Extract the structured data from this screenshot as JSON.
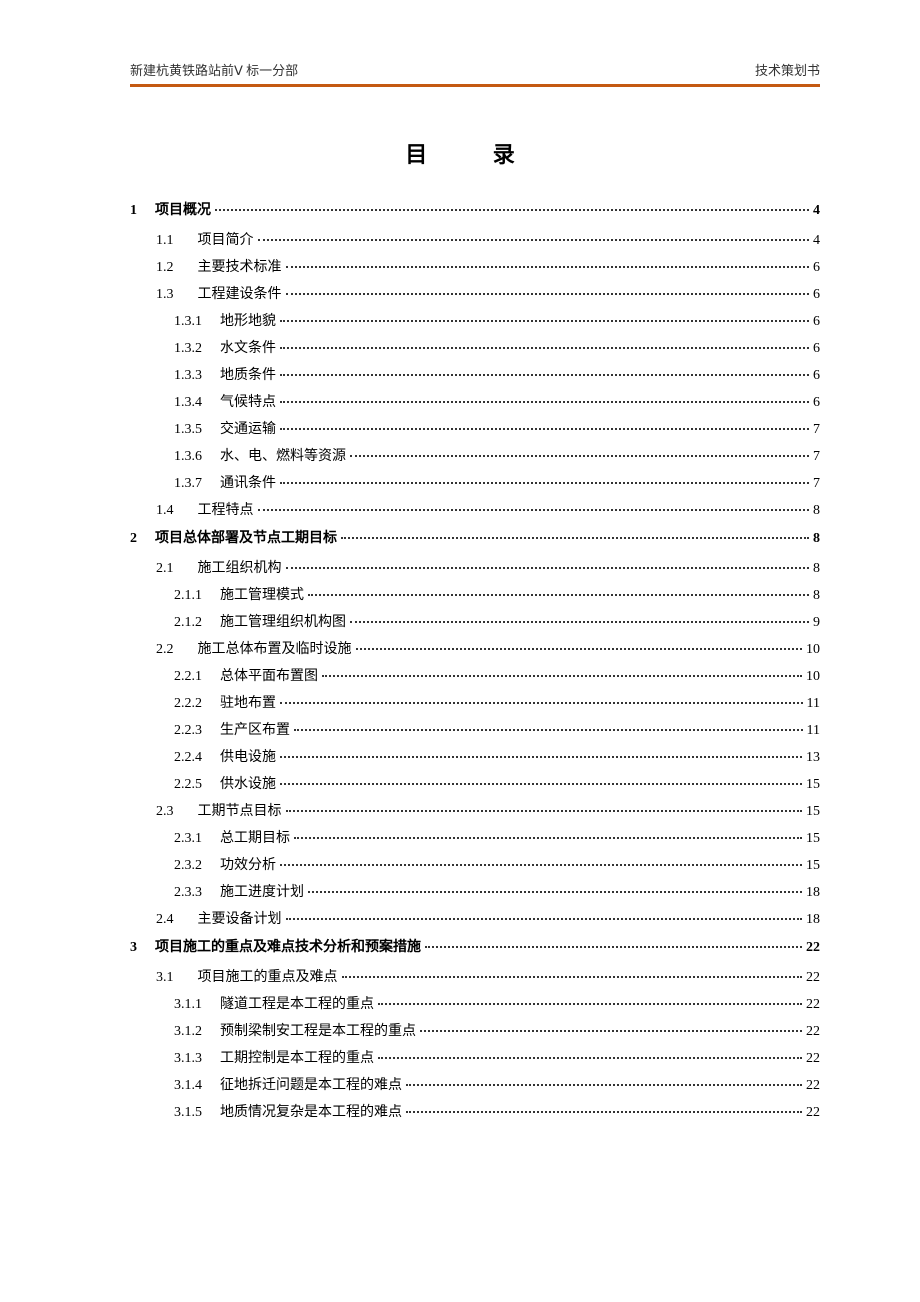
{
  "header": {
    "left": "新建杭黄铁路站前Ⅴ 标一分部",
    "right": "技术策划书"
  },
  "title": "目 录",
  "styles": {
    "border_color": "#c45911",
    "text_color": "#333333",
    "background_color": "#ffffff",
    "title_fontsize": 22,
    "body_fontsize": 14,
    "header_fontsize": 13
  },
  "toc": [
    {
      "level": 1,
      "num": "1",
      "label": "项目概况",
      "page": "4"
    },
    {
      "level": 2,
      "num": "1.1",
      "label": "项目简介",
      "page": "4"
    },
    {
      "level": 2,
      "num": "1.2",
      "label": "主要技术标准",
      "page": "6"
    },
    {
      "level": 2,
      "num": "1.3",
      "label": "工程建设条件",
      "page": "6"
    },
    {
      "level": 3,
      "num": "1.3.1",
      "label": "地形地貌",
      "page": "6"
    },
    {
      "level": 3,
      "num": "1.3.2",
      "label": "水文条件",
      "page": "6"
    },
    {
      "level": 3,
      "num": "1.3.3",
      "label": "地质条件",
      "page": "6"
    },
    {
      "level": 3,
      "num": "1.3.4",
      "label": "气候特点",
      "page": "6"
    },
    {
      "level": 3,
      "num": "1.3.5",
      "label": "交通运输",
      "page": "7"
    },
    {
      "level": 3,
      "num": "1.3.6",
      "label": "水、电、燃料等资源",
      "page": "7"
    },
    {
      "level": 3,
      "num": "1.3.7",
      "label": "通讯条件",
      "page": "7"
    },
    {
      "level": 2,
      "num": "1.4",
      "label": "工程特点",
      "page": "8"
    },
    {
      "level": 1,
      "num": "2",
      "label": "项目总体部署及节点工期目标",
      "page": "8"
    },
    {
      "level": 2,
      "num": "2.1",
      "label": "施工组织机构",
      "page": "8"
    },
    {
      "level": 3,
      "num": "2.1.1",
      "label": "施工管理模式",
      "page": "8"
    },
    {
      "level": 3,
      "num": "2.1.2",
      "label": "施工管理组织机构图",
      "page": "9"
    },
    {
      "level": 2,
      "num": "2.2",
      "label": "施工总体布置及临时设施",
      "page": "10"
    },
    {
      "level": 3,
      "num": "2.2.1",
      "label": "总体平面布置图",
      "page": "10"
    },
    {
      "level": 3,
      "num": "2.2.2",
      "label": "驻地布置",
      "page": "11"
    },
    {
      "level": 3,
      "num": "2.2.3",
      "label": "生产区布置",
      "page": "11"
    },
    {
      "level": 3,
      "num": "2.2.4",
      "label": "供电设施",
      "page": "13"
    },
    {
      "level": 3,
      "num": "2.2.5",
      "label": "供水设施",
      "page": "15"
    },
    {
      "level": 2,
      "num": "2.3",
      "label": "工期节点目标",
      "page": "15"
    },
    {
      "level": 3,
      "num": "2.3.1",
      "label": "总工期目标",
      "page": "15"
    },
    {
      "level": 3,
      "num": "2.3.2",
      "label": "功效分析",
      "page": "15"
    },
    {
      "level": 3,
      "num": "2.3.3",
      "label": "施工进度计划",
      "page": "18"
    },
    {
      "level": 2,
      "num": "2.4",
      "label": "主要设备计划",
      "page": "18"
    },
    {
      "level": 1,
      "num": "3",
      "label": "项目施工的重点及难点技术分析和预案措施",
      "page": "22"
    },
    {
      "level": 2,
      "num": "3.1",
      "label": "项目施工的重点及难点",
      "page": "22"
    },
    {
      "level": 3,
      "num": "3.1.1",
      "label": "隧道工程是本工程的重点",
      "page": "22"
    },
    {
      "level": 3,
      "num": "3.1.2",
      "label": "预制梁制安工程是本工程的重点",
      "page": "22"
    },
    {
      "level": 3,
      "num": "3.1.3",
      "label": "工期控制是本工程的重点",
      "page": "22"
    },
    {
      "level": 3,
      "num": "3.1.4",
      "label": "征地拆迁问题是本工程的难点",
      "page": "22"
    },
    {
      "level": 3,
      "num": "3.1.5",
      "label": "地质情况复杂是本工程的难点",
      "page": "22"
    }
  ]
}
